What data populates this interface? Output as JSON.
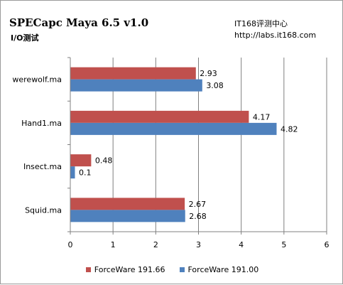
{
  "header": {
    "title": "SPECapc Maya 6.5 v1.0",
    "subtitle": "I/O测试",
    "source_line1": "IT168评测中心",
    "source_line2": "http://labs.it168.com"
  },
  "colors": {
    "forceware_191_66": "#c0504d",
    "forceware_191_00": "#4f81bd",
    "grid": "#808080",
    "background": "#ffffff"
  },
  "chart_data": {
    "type": "bar",
    "orientation": "horizontal",
    "categories": [
      "werewolf.ma",
      "Hand1.ma",
      "Insect.ma",
      "Squid.ma"
    ],
    "series": [
      {
        "name": "ForceWare 191.66",
        "values": [
          2.93,
          4.17,
          0.48,
          2.67
        ]
      },
      {
        "name": "ForceWare 191.00",
        "values": [
          3.08,
          4.82,
          0.1,
          2.68
        ]
      }
    ],
    "data_labels": [
      [
        "2.93",
        "4.17",
        "0.48",
        "2.67"
      ],
      [
        "3.08",
        "4.82",
        "0.1",
        "2.68"
      ]
    ],
    "xlim": [
      0,
      6
    ],
    "xticks": [
      "0",
      "1",
      "2",
      "3",
      "4",
      "5",
      "6"
    ],
    "grid": true,
    "legend_position": "bottom"
  }
}
